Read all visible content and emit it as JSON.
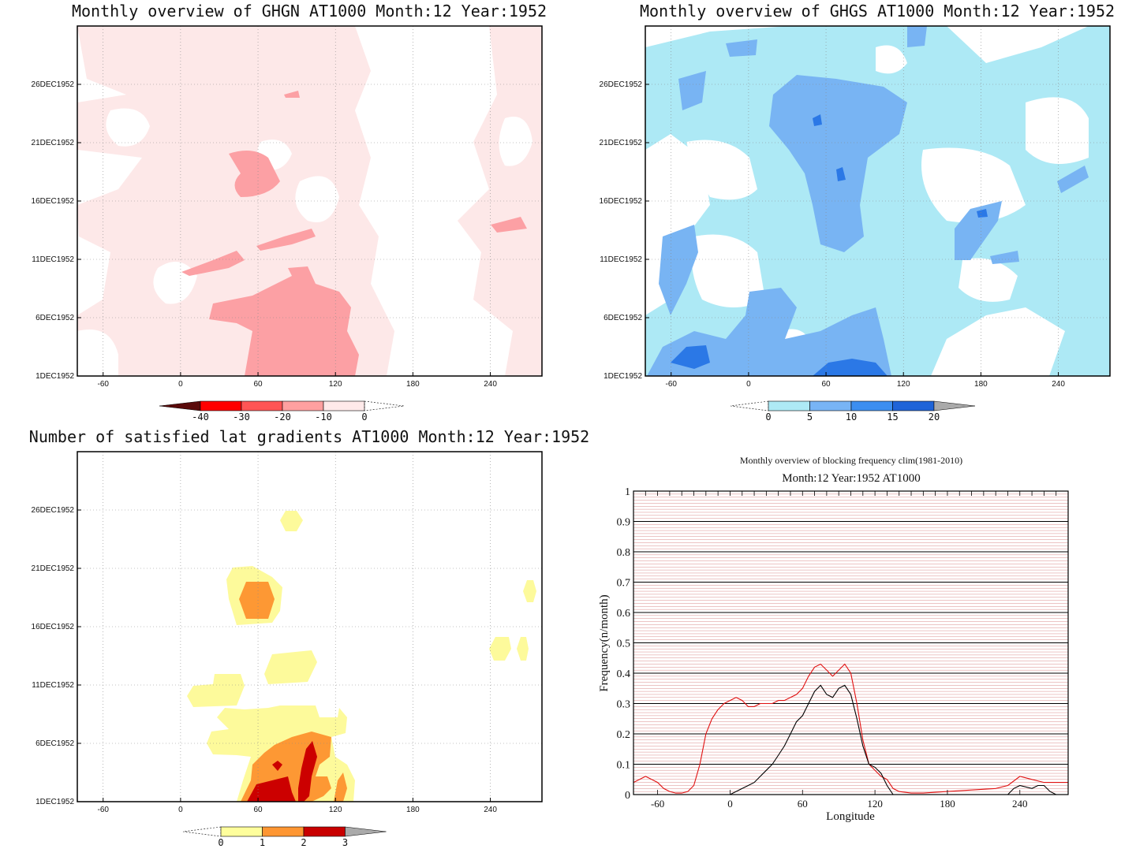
{
  "chart_data": [
    {
      "type": "heatmap",
      "title": "Monthly overview of GHGN AT1000 Month:12 Year:1952",
      "x_ticks": [
        "-60",
        "0",
        "60",
        "120",
        "180",
        "240"
      ],
      "y_ticks": [
        "1DEC1952",
        "6DEC1952",
        "11DEC1952",
        "16DEC1952",
        "21DEC1952",
        "26DEC1952"
      ],
      "colorbar": {
        "labels": [
          "-40",
          "-30",
          "-20",
          "-10",
          "0"
        ],
        "colors": [
          "#5a0a0a",
          "#ff0000",
          "#ff5555",
          "#ffa0a0",
          "#ffeaea"
        ]
      },
      "fill_colors": {
        "light": "#fde8e8",
        "medium": "#fca0a4"
      }
    },
    {
      "type": "heatmap",
      "title": "Monthly overview of GHGS AT1000 Month:12 Year:1952",
      "x_ticks": [
        "-60",
        "0",
        "60",
        "120",
        "180",
        "240"
      ],
      "y_ticks": [
        "1DEC1952",
        "6DEC1952",
        "11DEC1952",
        "16DEC1952",
        "21DEC1952",
        "26DEC1952"
      ],
      "colorbar": {
        "labels": [
          "0",
          "5",
          "10",
          "15",
          "20"
        ],
        "colors": [
          "#aeeaf5",
          "#78b4f5",
          "#3c8ef0",
          "#1f64d8",
          "#aaaaaa"
        ]
      },
      "fill_colors": {
        "light": "#ade9f5",
        "medium": "#78b4f3",
        "dark": "#2b78e6"
      }
    },
    {
      "type": "heatmap",
      "title": "Number of satisfied lat gradients AT1000 Month:12 Year:1952",
      "x_ticks": [
        "-60",
        "0",
        "60",
        "120",
        "180",
        "240"
      ],
      "y_ticks": [
        "1DEC1952",
        "6DEC1952",
        "11DEC1952",
        "16DEC1952",
        "21DEC1952",
        "26DEC1952"
      ],
      "colorbar": {
        "labels": [
          "0",
          "1",
          "2",
          "3"
        ],
        "colors": [
          "#fefe9c",
          "#fe9632",
          "#c80000",
          "#aaaaaa"
        ]
      },
      "fill_colors": {
        "level1": "#fdfa9b",
        "level2": "#fd9834",
        "level3": "#cc0000"
      }
    },
    {
      "type": "line",
      "title": "Monthly overview of blocking frequency clim(1981-2010)",
      "subtitle": "Month:12 Year:1952  AT1000",
      "xlabel": "Longitude",
      "ylabel": "Frequency(n/month)",
      "xlim": [
        -80,
        280
      ],
      "ylim": [
        0,
        1
      ],
      "x_ticks": [
        "-60",
        "0",
        "60",
        "120",
        "180",
        "240"
      ],
      "y_ticks": [
        "0",
        "0.1",
        "0.2",
        "0.3",
        "0.4",
        "0.5",
        "0.6",
        "0.7",
        "0.8",
        "0.9",
        "1"
      ],
      "grid": true,
      "series": [
        {
          "color": "#e01010",
          "points": [
            [
              -80,
              0.04
            ],
            [
              -75,
              0.05
            ],
            [
              -70,
              0.06
            ],
            [
              -65,
              0.05
            ],
            [
              -60,
              0.04
            ],
            [
              -55,
              0.02
            ],
            [
              -50,
              0.01
            ],
            [
              -45,
              0.005
            ],
            [
              -40,
              0.005
            ],
            [
              -35,
              0.01
            ],
            [
              -30,
              0.03
            ],
            [
              -25,
              0.1
            ],
            [
              -20,
              0.2
            ],
            [
              -15,
              0.25
            ],
            [
              -10,
              0.28
            ],
            [
              -5,
              0.3
            ],
            [
              0,
              0.31
            ],
            [
              5,
              0.32
            ],
            [
              10,
              0.31
            ],
            [
              15,
              0.29
            ],
            [
              20,
              0.29
            ],
            [
              25,
              0.3
            ],
            [
              30,
              0.3
            ],
            [
              35,
              0.3
            ],
            [
              40,
              0.31
            ],
            [
              45,
              0.31
            ],
            [
              50,
              0.32
            ],
            [
              55,
              0.33
            ],
            [
              60,
              0.35
            ],
            [
              65,
              0.39
            ],
            [
              70,
              0.42
            ],
            [
              75,
              0.43
            ],
            [
              80,
              0.41
            ],
            [
              85,
              0.39
            ],
            [
              90,
              0.41
            ],
            [
              95,
              0.43
            ],
            [
              100,
              0.4
            ],
            [
              105,
              0.3
            ],
            [
              110,
              0.18
            ],
            [
              115,
              0.1
            ],
            [
              120,
              0.08
            ],
            [
              125,
              0.06
            ],
            [
              130,
              0.05
            ],
            [
              135,
              0.02
            ],
            [
              140,
              0.01
            ],
            [
              150,
              0.005
            ],
            [
              160,
              0.005
            ],
            [
              180,
              0.01
            ],
            [
              200,
              0.015
            ],
            [
              220,
              0.02
            ],
            [
              230,
              0.03
            ],
            [
              240,
              0.06
            ],
            [
              250,
              0.05
            ],
            [
              260,
              0.04
            ],
            [
              270,
              0.04
            ],
            [
              280,
              0.04
            ]
          ]
        },
        {
          "color": "#000000",
          "points": [
            [
              -80,
              0
            ],
            [
              0,
              0
            ],
            [
              5,
              0.01
            ],
            [
              10,
              0.02
            ],
            [
              15,
              0.03
            ],
            [
              20,
              0.04
            ],
            [
              25,
              0.06
            ],
            [
              30,
              0.08
            ],
            [
              35,
              0.1
            ],
            [
              40,
              0.13
            ],
            [
              45,
              0.16
            ],
            [
              50,
              0.2
            ],
            [
              55,
              0.24
            ],
            [
              60,
              0.26
            ],
            [
              65,
              0.3
            ],
            [
              70,
              0.34
            ],
            [
              75,
              0.36
            ],
            [
              80,
              0.33
            ],
            [
              85,
              0.32
            ],
            [
              90,
              0.35
            ],
            [
              95,
              0.36
            ],
            [
              100,
              0.33
            ],
            [
              105,
              0.25
            ],
            [
              110,
              0.16
            ],
            [
              115,
              0.1
            ],
            [
              120,
              0.09
            ],
            [
              125,
              0.07
            ],
            [
              130,
              0.03
            ],
            [
              135,
              0
            ],
            [
              230,
              0
            ],
            [
              235,
              0.02
            ],
            [
              240,
              0.03
            ],
            [
              250,
              0.02
            ],
            [
              255,
              0.03
            ],
            [
              260,
              0.03
            ],
            [
              265,
              0.01
            ],
            [
              270,
              0
            ],
            [
              280,
              0
            ]
          ]
        }
      ]
    }
  ]
}
